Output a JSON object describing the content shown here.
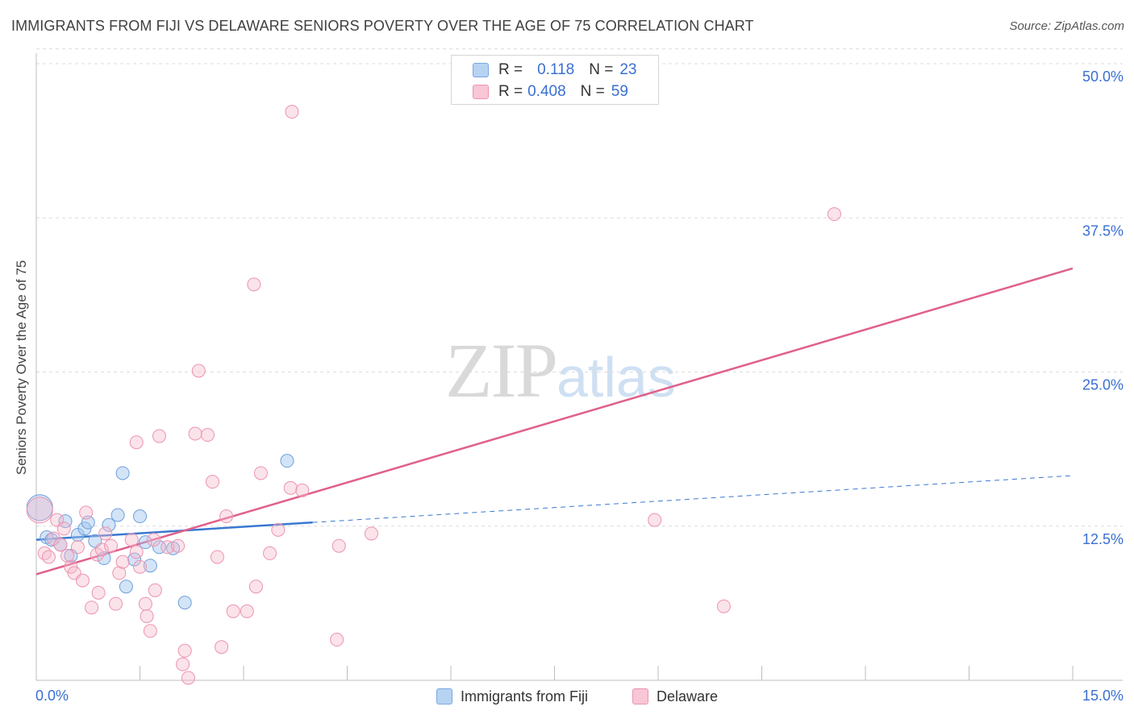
{
  "title": "IMMIGRANTS FROM FIJI VS DELAWARE SENIORS POVERTY OVER THE AGE OF 75 CORRELATION CHART",
  "source": "Source: ZipAtlas.com",
  "watermark": {
    "zip": "ZIP",
    "atlas": "atlas"
  },
  "legend": {
    "r_label": "R =",
    "n_label": "N =",
    "rows": [
      {
        "r": "0.118",
        "n": "23"
      },
      {
        "r": "0.408",
        "n": "59"
      }
    ]
  },
  "chart_data": {
    "type": "scatter",
    "title": "IMMIGRANTS FROM FIJI VS DELAWARE SENIORS POVERTY OVER THE AGE OF 75 CORRELATION CHART",
    "xlabel": "",
    "ylabel": "Seniors Poverty Over the Age of 75",
    "xlim": [
      0,
      15
    ],
    "ylim": [
      0,
      50
    ],
    "x_tick_labels": [
      "0.0%",
      "15.0%"
    ],
    "y_ticks": [
      12.5,
      25.0,
      37.5,
      50.0
    ],
    "y_tick_labels": [
      "12.5%",
      "25.0%",
      "37.5%",
      "50.0%"
    ],
    "grid": true,
    "legend_position": "top-center",
    "series": [
      {
        "name": "Immigrants from Fiji",
        "color": "#9ec4ee",
        "line_color": "#3a78d0",
        "r": 0.118,
        "n": 23,
        "trend": {
          "x0": 0,
          "y0": 11.4,
          "x1": 4.0,
          "y1": 12.8,
          "dashed_to_x": 15,
          "dashed_to_y": 16.6
        },
        "points": [
          {
            "x": 0.05,
            "y": 14.0,
            "big": true
          },
          {
            "x": 0.15,
            "y": 11.6
          },
          {
            "x": 0.22,
            "y": 11.4
          },
          {
            "x": 0.35,
            "y": 11.0
          },
          {
            "x": 0.42,
            "y": 12.9
          },
          {
            "x": 0.5,
            "y": 10.1
          },
          {
            "x": 0.6,
            "y": 11.8
          },
          {
            "x": 0.7,
            "y": 12.3
          },
          {
            "x": 0.75,
            "y": 12.8
          },
          {
            "x": 0.85,
            "y": 11.3
          },
          {
            "x": 0.98,
            "y": 9.9
          },
          {
            "x": 1.05,
            "y": 12.6
          },
          {
            "x": 1.18,
            "y": 13.4
          },
          {
            "x": 1.25,
            "y": 16.8
          },
          {
            "x": 1.3,
            "y": 7.6
          },
          {
            "x": 1.42,
            "y": 9.8
          },
          {
            "x": 1.5,
            "y": 13.3
          },
          {
            "x": 1.58,
            "y": 11.2
          },
          {
            "x": 1.65,
            "y": 9.3
          },
          {
            "x": 1.78,
            "y": 10.8
          },
          {
            "x": 1.98,
            "y": 10.7
          },
          {
            "x": 2.15,
            "y": 6.3
          },
          {
            "x": 3.63,
            "y": 17.8
          }
        ]
      },
      {
        "name": "Delaware",
        "color": "#f5b8cb",
        "line_color": "#e0608a",
        "r": 0.408,
        "n": 59,
        "trend": {
          "x0": 0,
          "y0": 8.6,
          "x1": 15,
          "y1": 33.4
        },
        "points": [
          {
            "x": 0.05,
            "y": 13.8,
            "big": true
          },
          {
            "x": 0.12,
            "y": 10.3
          },
          {
            "x": 0.18,
            "y": 10.0
          },
          {
            "x": 0.25,
            "y": 11.5
          },
          {
            "x": 0.3,
            "y": 13.0
          },
          {
            "x": 0.35,
            "y": 11.0
          },
          {
            "x": 0.4,
            "y": 12.3
          },
          {
            "x": 0.45,
            "y": 10.1
          },
          {
            "x": 0.5,
            "y": 9.2
          },
          {
            "x": 0.55,
            "y": 8.7
          },
          {
            "x": 0.6,
            "y": 10.8
          },
          {
            "x": 0.67,
            "y": 8.1
          },
          {
            "x": 0.72,
            "y": 13.6
          },
          {
            "x": 0.8,
            "y": 5.9
          },
          {
            "x": 0.88,
            "y": 10.2
          },
          {
            "x": 0.9,
            "y": 7.1
          },
          {
            "x": 0.95,
            "y": 10.6
          },
          {
            "x": 1.0,
            "y": 11.9
          },
          {
            "x": 1.08,
            "y": 10.9
          },
          {
            "x": 1.15,
            "y": 6.2
          },
          {
            "x": 1.2,
            "y": 8.7
          },
          {
            "x": 1.25,
            "y": 9.6
          },
          {
            "x": 1.38,
            "y": 11.4
          },
          {
            "x": 1.45,
            "y": 10.4
          },
          {
            "x": 1.45,
            "y": 19.3
          },
          {
            "x": 1.5,
            "y": 9.2
          },
          {
            "x": 1.58,
            "y": 6.2
          },
          {
            "x": 1.6,
            "y": 5.2
          },
          {
            "x": 1.65,
            "y": 4.0
          },
          {
            "x": 1.7,
            "y": 11.4
          },
          {
            "x": 1.72,
            "y": 7.3
          },
          {
            "x": 1.78,
            "y": 19.8
          },
          {
            "x": 1.9,
            "y": 10.8
          },
          {
            "x": 2.05,
            "y": 10.9
          },
          {
            "x": 2.12,
            "y": 1.3
          },
          {
            "x": 2.15,
            "y": 2.4
          },
          {
            "x": 2.2,
            "y": 0.2
          },
          {
            "x": 2.3,
            "y": 20.0
          },
          {
            "x": 2.35,
            "y": 25.1
          },
          {
            "x": 2.48,
            "y": 19.9
          },
          {
            "x": 2.55,
            "y": 16.1
          },
          {
            "x": 2.62,
            "y": 10.0
          },
          {
            "x": 2.68,
            "y": 2.7
          },
          {
            "x": 2.75,
            "y": 13.3
          },
          {
            "x": 2.85,
            "y": 5.6
          },
          {
            "x": 3.05,
            "y": 5.6
          },
          {
            "x": 3.15,
            "y": 32.1
          },
          {
            "x": 3.18,
            "y": 7.6
          },
          {
            "x": 3.25,
            "y": 16.8
          },
          {
            "x": 3.38,
            "y": 10.3
          },
          {
            "x": 3.5,
            "y": 12.2
          },
          {
            "x": 3.68,
            "y": 15.6
          },
          {
            "x": 3.7,
            "y": 46.1
          },
          {
            "x": 3.85,
            "y": 15.4
          },
          {
            "x": 4.35,
            "y": 3.3
          },
          {
            "x": 4.38,
            "y": 10.9
          },
          {
            "x": 4.85,
            "y": 11.9
          },
          {
            "x": 8.95,
            "y": 13.0
          },
          {
            "x": 9.95,
            "y": 6.0
          },
          {
            "x": 11.55,
            "y": 37.8
          }
        ]
      }
    ]
  }
}
